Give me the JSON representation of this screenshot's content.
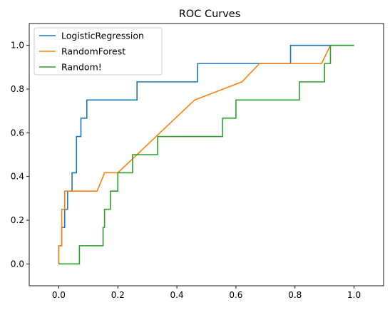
{
  "chart_data": {
    "type": "line",
    "title": "ROC Curves",
    "xlabel": "",
    "ylabel": "",
    "xlim": [
      -0.1,
      1.1
    ],
    "ylim": [
      -0.1,
      1.1
    ],
    "xticks": [
      "0.0",
      "0.2",
      "0.4",
      "0.6",
      "0.8",
      "1.0"
    ],
    "yticks": [
      "0.0",
      "0.2",
      "0.4",
      "0.6",
      "0.8",
      "1.0"
    ],
    "grid": false,
    "legend_position": "top-left",
    "series": [
      {
        "name": "LogisticRegression",
        "color": "#1f77b4",
        "x": [
          0,
          0,
          0.01,
          0.01,
          0.02,
          0.02,
          0.03,
          0.03,
          0.045,
          0.045,
          0.06,
          0.06,
          0.075,
          0.075,
          0.095,
          0.095,
          0.265,
          0.265,
          0.47,
          0.47,
          0.785,
          0.785,
          1.0
        ],
        "y": [
          0,
          0.083,
          0.083,
          0.167,
          0.167,
          0.25,
          0.25,
          0.333,
          0.333,
          0.417,
          0.417,
          0.583,
          0.583,
          0.667,
          0.667,
          0.75,
          0.75,
          0.833,
          0.833,
          0.917,
          0.917,
          1.0,
          1.0
        ]
      },
      {
        "name": "RandomForest",
        "color": "#ff7f0e",
        "x": [
          0,
          0,
          0.01,
          0.01,
          0.02,
          0.02,
          0.13,
          0.155,
          0.2,
          0.46,
          0.62,
          0.68,
          0.89,
          0.92,
          1.0
        ],
        "y": [
          0,
          0.083,
          0.083,
          0.25,
          0.25,
          0.333,
          0.333,
          0.417,
          0.417,
          0.75,
          0.833,
          0.917,
          0.917,
          1.0,
          1.0
        ]
      },
      {
        "name": "Random!",
        "color": "#2ca02c",
        "x": [
          0,
          0.07,
          0.07,
          0.15,
          0.15,
          0.155,
          0.155,
          0.175,
          0.175,
          0.2,
          0.2,
          0.25,
          0.25,
          0.335,
          0.335,
          0.555,
          0.555,
          0.6,
          0.6,
          0.815,
          0.815,
          0.9,
          0.9,
          0.92,
          0.92,
          1.0
        ],
        "y": [
          0,
          0,
          0.083,
          0.083,
          0.167,
          0.167,
          0.25,
          0.25,
          0.333,
          0.333,
          0.417,
          0.417,
          0.5,
          0.5,
          0.583,
          0.583,
          0.667,
          0.667,
          0.75,
          0.75,
          0.833,
          0.833,
          0.917,
          0.917,
          1.0,
          1.0
        ]
      }
    ]
  }
}
